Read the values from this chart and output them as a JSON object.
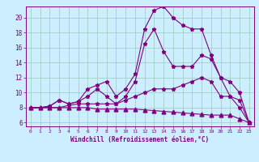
{
  "xlabel": "Windchill (Refroidissement éolien,°C)",
  "bg_color": "#cceeff",
  "line_color": "#800080",
  "grid_color": "#99ccbb",
  "xlim": [
    -0.5,
    23.5
  ],
  "ylim": [
    5.5,
    21.5
  ],
  "yticks": [
    6,
    8,
    10,
    12,
    14,
    16,
    18,
    20
  ],
  "xticks": [
    0,
    1,
    2,
    3,
    4,
    5,
    6,
    7,
    8,
    9,
    10,
    11,
    12,
    13,
    14,
    15,
    16,
    17,
    18,
    19,
    20,
    21,
    22,
    23
  ],
  "line1_x": [
    0,
    1,
    2,
    3,
    4,
    5,
    6,
    7,
    8,
    9,
    10,
    11,
    12,
    13,
    14,
    15,
    16,
    17,
    18,
    19,
    20,
    21,
    22,
    23
  ],
  "line1_y": [
    8.0,
    8.0,
    8.2,
    9.0,
    8.5,
    8.8,
    10.5,
    11.0,
    11.5,
    9.5,
    10.5,
    12.5,
    18.5,
    21.0,
    21.5,
    20.0,
    19.0,
    18.5,
    18.5,
    15.0,
    12.0,
    11.5,
    10.0,
    6.0
  ],
  "line2_x": [
    0,
    1,
    2,
    3,
    4,
    5,
    6,
    7,
    8,
    9,
    10,
    11,
    12,
    13,
    14,
    15,
    16,
    17,
    18,
    19,
    20,
    21,
    22,
    23
  ],
  "line2_y": [
    8.0,
    8.0,
    8.2,
    9.0,
    8.5,
    8.8,
    9.5,
    10.5,
    9.5,
    8.5,
    9.5,
    11.5,
    16.5,
    18.5,
    15.5,
    13.5,
    13.5,
    13.5,
    15.0,
    14.5,
    12.0,
    9.5,
    9.0,
    6.0
  ],
  "line3_x": [
    0,
    1,
    2,
    3,
    4,
    5,
    6,
    7,
    8,
    9,
    10,
    11,
    12,
    13,
    14,
    15,
    16,
    17,
    18,
    19,
    20,
    21,
    22,
    23
  ],
  "line3_y": [
    8.0,
    8.0,
    8.0,
    8.0,
    8.3,
    8.5,
    8.5,
    8.5,
    8.5,
    8.5,
    9.0,
    9.5,
    10.0,
    10.5,
    10.5,
    10.5,
    11.0,
    11.5,
    12.0,
    11.5,
    9.5,
    9.5,
    8.0,
    6.0
  ],
  "line4_x": [
    0,
    1,
    2,
    3,
    4,
    5,
    6,
    7,
    8,
    9,
    10,
    11,
    12,
    13,
    14,
    15,
    16,
    17,
    18,
    19,
    20,
    21,
    22,
    23
  ],
  "line4_y": [
    8.0,
    8.0,
    8.0,
    8.0,
    8.0,
    8.0,
    8.0,
    7.8,
    7.8,
    7.8,
    7.8,
    7.8,
    7.7,
    7.6,
    7.5,
    7.4,
    7.3,
    7.2,
    7.1,
    7.0,
    7.0,
    7.0,
    6.5,
    6.0
  ]
}
